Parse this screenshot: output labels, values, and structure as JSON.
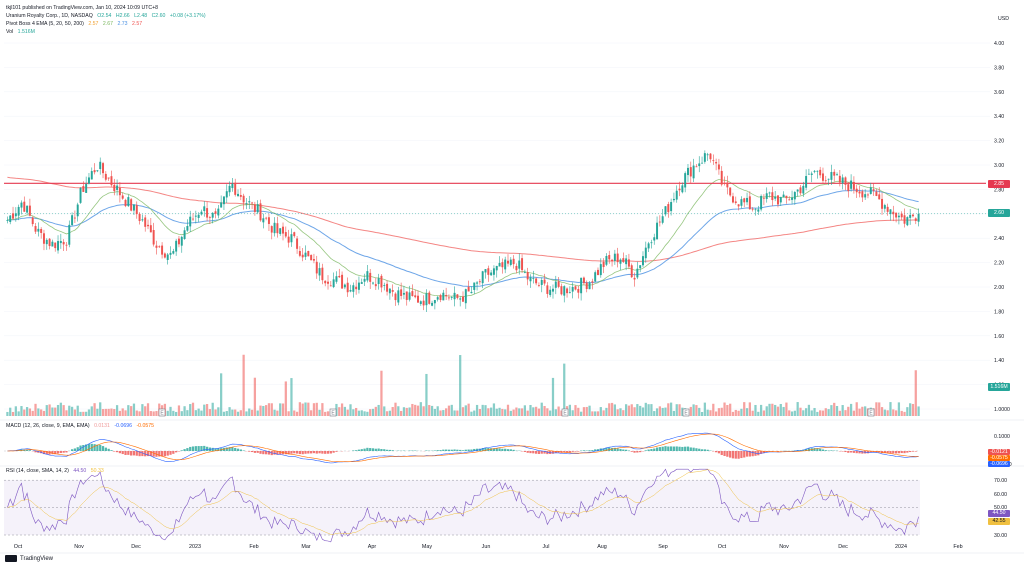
{
  "publisher": "tkjl101 published on TradingView.com, Jan 10, 2024 10:09 UTC+8",
  "main_legend": {
    "symbol": "Uranium Royalty Corp., 1D, NASDAQ",
    "open": "O2.54",
    "high": "H2.66",
    "low": "L2.48",
    "close": "C2.60",
    "change": "+0.08 (+3.17%)"
  },
  "ema_legend": {
    "name": "Pivot Boss 4 EMA (5, 20, 50, 200)",
    "v1": "2.57",
    "v2": "2.67",
    "v3": "2.73",
    "v4": "2.57"
  },
  "vol_legend": {
    "name": "Vol",
    "value": "1.516M"
  },
  "macd_legend": {
    "name": "MACD (12, 26, close, 9, EMA, EMA)",
    "hist": "0.0131",
    "macd": "-0.0696",
    "signal": "-0.0575"
  },
  "rsi_legend": {
    "name": "RSI (14, close, SMA, 14, 2)",
    "rsi": "44.50",
    "ma": "50.33"
  },
  "currency": "USD",
  "price_axis": [
    "4.00",
    "3.80",
    "3.60",
    "3.40",
    "3.20",
    "3.00",
    "2.80",
    "2.60",
    "2.40",
    "2.20",
    "2.00",
    "1.80",
    "1.60",
    "1.40",
    "1.20",
    "1.0000"
  ],
  "price_tags": {
    "line": "2.85",
    "last": "2.60",
    "vol": "1.516M"
  },
  "macd_axis": [
    "0.1000",
    "-0.1000"
  ],
  "macd_tags": [
    "-0.0121",
    "-0.0575",
    "-0.0696"
  ],
  "rsi_axis": [
    "70.00",
    "60.00",
    "50.00",
    "40.00",
    "30.00"
  ],
  "rsi_tags": [
    "44.50",
    "42.55"
  ],
  "x_axis": [
    "Oct",
    "Nov",
    "Dec",
    "2023",
    "Feb",
    "Mar",
    "Apr",
    "May",
    "Jun",
    "Jul",
    "Aug",
    "Sep",
    "Oct",
    "Nov",
    "Dec",
    "2024",
    "Feb"
  ],
  "earnings_marker": "E",
  "brand": "TradingView",
  "colors": {
    "up": "#26a69a",
    "down": "#ef5350",
    "ema20": "#7cb860",
    "ema50": "#4a90e2",
    "ema200": "#ef5350",
    "rsi": "#7e57c2",
    "hline": "#e53950"
  },
  "chart_data": {
    "type": "candlestick",
    "title": "Uranium Royalty Corp., 1D, NASDAQ",
    "ylim": [
      1.8,
      4.05
    ],
    "horizontal_line": 2.85,
    "last_close": 2.6,
    "closes_by_month": {
      "Oct 2022": [
        2.55,
        2.7,
        2.45,
        2.35
      ],
      "Nov 2022": [
        2.4,
        2.8,
        3.0,
        2.85
      ],
      "Dec 2022": [
        2.7,
        2.55,
        2.35,
        2.25
      ],
      "Jan 2023": [
        2.5,
        2.65,
        2.55,
        2.85
      ],
      "Feb 2023": [
        2.7,
        2.6,
        2.45,
        2.4
      ],
      "Mar 2023": [
        2.25,
        2.1,
        2.05,
        2.0
      ],
      "Apr 2023": [
        2.1,
        2.05,
        1.95,
        1.9
      ],
      "May 2023": [
        1.9,
        1.95,
        1.9,
        1.95
      ],
      "Jun 2023": [
        2.1,
        2.15,
        2.2,
        2.05
      ],
      "Jul 2023": [
        2.0,
        1.98,
        2.0,
        2.05
      ],
      "Aug 2023": [
        2.2,
        2.25,
        2.1,
        2.4
      ],
      "Sep 2023": [
        2.6,
        2.85,
        3.0,
        3.1
      ],
      "Oct 2023": [
        2.8,
        2.7,
        2.65,
        2.75
      ],
      "Nov 2023": [
        2.7,
        2.8,
        2.95,
        2.9
      ],
      "Dec 2023": [
        2.85,
        2.8,
        2.75,
        2.65
      ],
      "Jan 2024": [
        2.55,
        2.6
      ]
    },
    "volume_max_approx": "1.75M",
    "rsi_bands": [
      30,
      70
    ]
  }
}
